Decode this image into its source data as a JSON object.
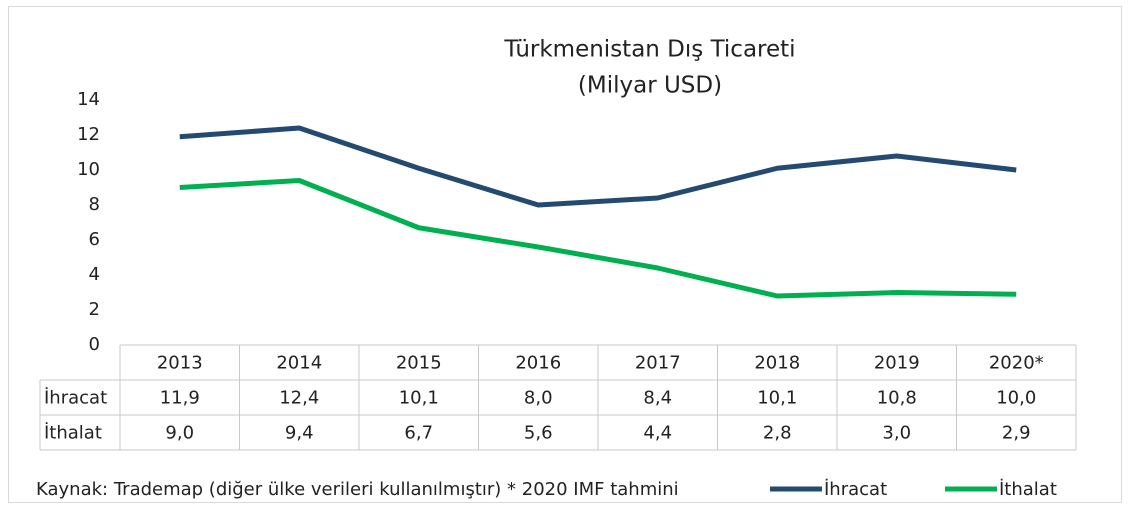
{
  "chart_data": {
    "type": "line",
    "title": "Türkmenistan Dış Ticareti",
    "subtitle": "(Milyar USD)",
    "source": "Kaynak: Trademap (diğer ülke verileri kullanılmıştır) * 2020 IMF tahmini",
    "categories": [
      "2013",
      "2014",
      "2015",
      "2016",
      "2017",
      "2018",
      "2019",
      "2020*"
    ],
    "series": [
      {
        "name": "İhracat",
        "color": "#254a72",
        "values": [
          11.9,
          12.4,
          10.1,
          8.0,
          8.4,
          10.1,
          10.8,
          10.0
        ],
        "value_labels": [
          "11,9",
          "12,4",
          "10,1",
          "8,0",
          "8,4",
          "10,1",
          "10,8",
          "10,0"
        ]
      },
      {
        "name": "İthalat",
        "color": "#00b050",
        "values": [
          9.0,
          9.4,
          6.7,
          5.6,
          4.4,
          2.8,
          3.0,
          2.9
        ],
        "value_labels": [
          "9,0",
          "9,4",
          "6,7",
          "5,6",
          "4,4",
          "2,8",
          "3,0",
          "2,9"
        ]
      }
    ],
    "ylim": [
      0,
      14
    ],
    "yticks": [
      0,
      2,
      4,
      6,
      8,
      10,
      12,
      14
    ],
    "grid": false
  }
}
